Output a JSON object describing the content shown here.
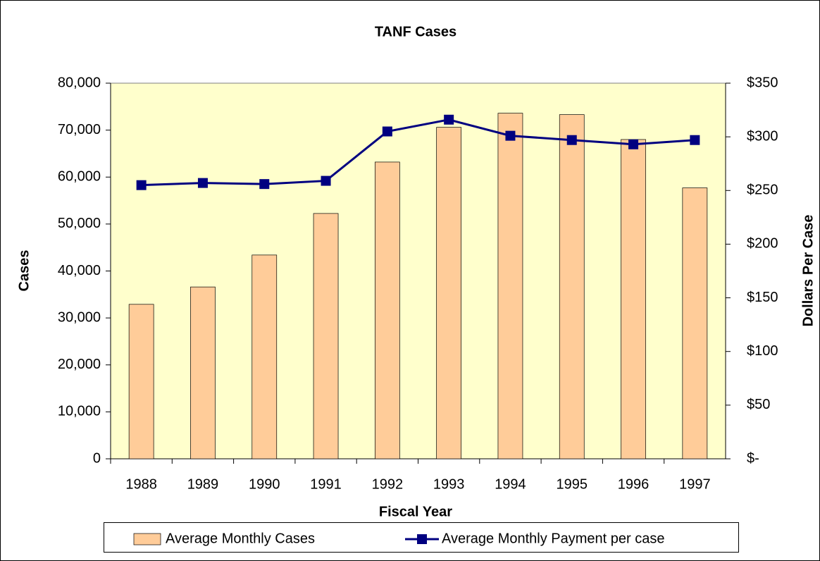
{
  "chart_data": {
    "type": "bar",
    "title": "TANF Cases",
    "x_label": "Fiscal Year",
    "y_label": "Cases",
    "y2_label": "Dollars Per Case",
    "categories": [
      "1988",
      "1989",
      "1990",
      "1991",
      "1992",
      "1993",
      "1994",
      "1995",
      "1996",
      "1997"
    ],
    "series": [
      {
        "name": "Average Monthly Cases",
        "type": "bar",
        "color": "#ffcc99",
        "values": [
          32900,
          36600,
          43400,
          52250,
          63200,
          70600,
          73600,
          73300,
          68000,
          57700
        ]
      },
      {
        "name": "Average Monthly Payment per case",
        "type": "line",
        "axis": "y2",
        "color": "#000080",
        "values": [
          255,
          257,
          256,
          259,
          305,
          316,
          301,
          297,
          293,
          297
        ]
      }
    ],
    "ylim": [
      0,
      80000
    ],
    "yticks": [
      0,
      {
        "value": 10000,
        "label": "10,000"
      },
      {
        "value": 20000,
        "label": "20,000"
      },
      {
        "value": 30000,
        "label": "30,000"
      },
      {
        "value": 40000,
        "label": "40,000"
      },
      {
        "value": 50000,
        "label": "50,000"
      },
      {
        "value": 60000,
        "label": "60,000"
      },
      {
        "value": 70000,
        "label": "70,000"
      },
      {
        "value": 80000,
        "label": "80,000"
      }
    ],
    "y2lim": [
      0,
      350
    ],
    "y2ticks": [
      {
        "value": 0,
        "label": "$-"
      },
      {
        "value": 50,
        "label": "$50"
      },
      {
        "value": 100,
        "label": "$100"
      },
      {
        "value": 150,
        "label": "$150"
      },
      {
        "value": 200,
        "label": "$200"
      },
      {
        "value": 250,
        "label": "$250"
      },
      {
        "value": 300,
        "label": "$300"
      },
      {
        "value": 350,
        "label": "$350"
      }
    ],
    "grid": false,
    "legend": "bottom",
    "plot_background": "#ffffcc"
  }
}
